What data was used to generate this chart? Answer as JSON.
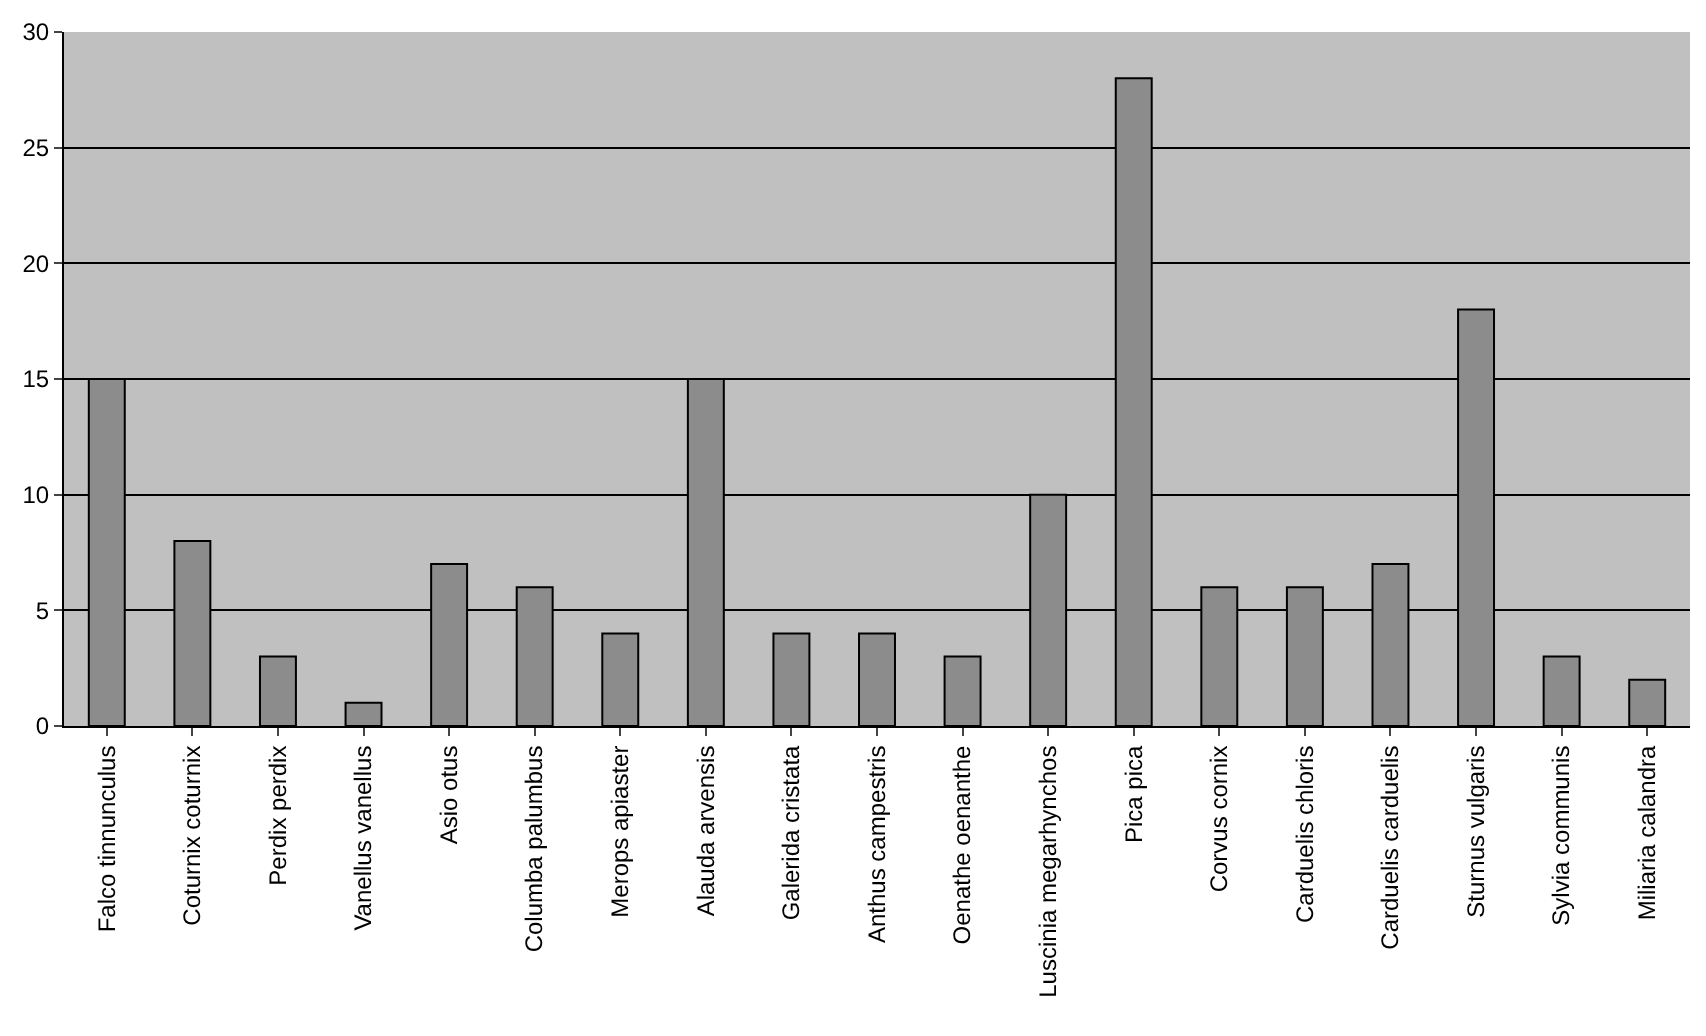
{
  "chart_data": {
    "type": "bar",
    "categories": [
      "Falco tinnunculus",
      "Coturnix coturnix",
      "Perdix perdix",
      "Vanellus vanellus",
      "Asio otus",
      "Columba palumbus",
      "Merops apiaster",
      "Alauda arvensis",
      "Galerida cristata",
      "Anthus campestris",
      "Oenathe oenanthe",
      "Luscinia megarhynchos",
      "Pica pica",
      "Corvus cornix",
      "Carduelis chloris",
      "Carduelis carduelis",
      "Sturnus vulgaris",
      "Sylvia communis",
      "Miliaria calandra"
    ],
    "values": [
      15,
      8,
      3,
      1,
      7,
      6,
      4,
      15,
      4,
      4,
      3,
      10,
      28,
      6,
      6,
      7,
      18,
      3,
      2
    ],
    "color": "#8c8c8c",
    "ylim": [
      0,
      30
    ],
    "yticks": [
      0,
      5,
      10,
      15,
      20,
      25,
      30
    ],
    "grid": "y"
  }
}
